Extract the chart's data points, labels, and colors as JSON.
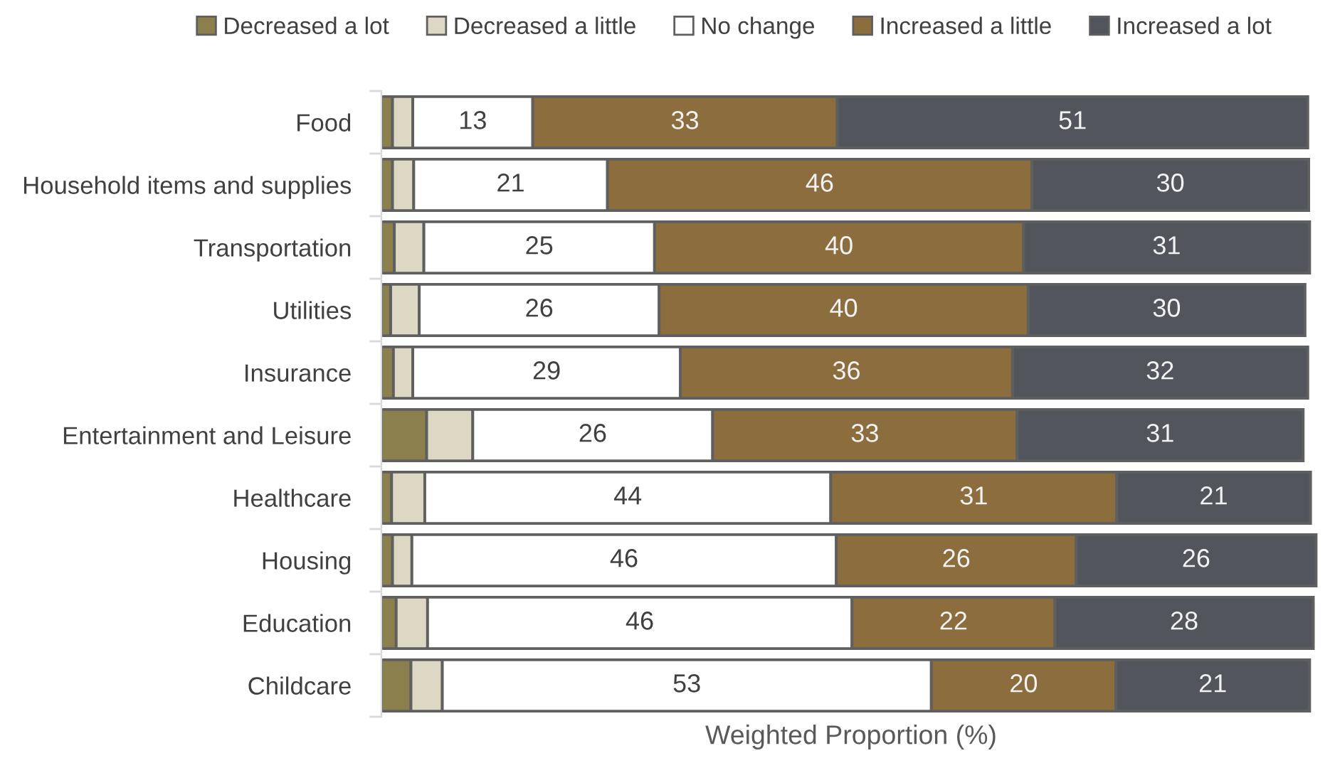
{
  "chart_data": {
    "type": "bar",
    "orientation": "horizontal",
    "stacked": true,
    "xlabel": "Weighted Proportion (%)",
    "categories": [
      "Food",
      "Household items and supplies",
      "Transportation",
      "Utilities",
      "Insurance",
      "Entertainment and Leisure",
      "Healthcare",
      "Housing",
      "Education",
      "Childcare"
    ],
    "series": [
      {
        "name": "Decreased a lot",
        "color": "#8c7f4e",
        "values": [
          1.2,
          1.2,
          1.4,
          1.0,
          1.3,
          4.9,
          1.1,
          1.2,
          1.6,
          3.2
        ]
      },
      {
        "name": "Decreased a little",
        "color": "#ddd8c4",
        "values": [
          2.2,
          2.3,
          3.2,
          3.1,
          2.1,
          5.0,
          3.6,
          2.1,
          3.4,
          3.4
        ]
      },
      {
        "name": "No change",
        "color": "#ffffff",
        "values": [
          13,
          21,
          25,
          26,
          29,
          26,
          44,
          46,
          46,
          53
        ],
        "value_labels": [
          "13",
          "21",
          "25",
          "26",
          "29",
          "26",
          "44",
          "46",
          "46",
          "53"
        ]
      },
      {
        "name": "Increased a little",
        "color": "#8c6d3e",
        "values": [
          33,
          46,
          40,
          40,
          36,
          33,
          31,
          26,
          22,
          20
        ],
        "value_labels": [
          "33",
          "46",
          "40",
          "40",
          "36",
          "33",
          "31",
          "26",
          "22",
          "20"
        ]
      },
      {
        "name": "Increased a lot",
        "color": "#52565c",
        "values": [
          51,
          30,
          31,
          30,
          32,
          31,
          21,
          26,
          28,
          21
        ],
        "value_labels": [
          "51",
          "30",
          "31",
          "30",
          "32",
          "31",
          "21",
          "26",
          "28",
          "21"
        ]
      }
    ],
    "legend": "top",
    "tick_labels": "y"
  }
}
